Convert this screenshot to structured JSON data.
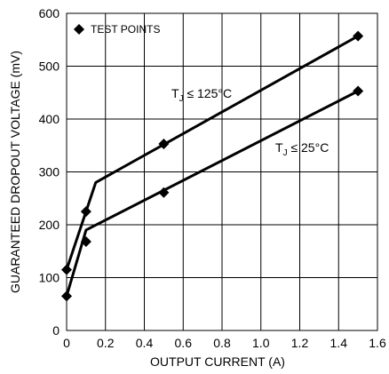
{
  "chart_data": {
    "type": "line",
    "title": "",
    "xlabel": "OUTPUT CURRENT (A)",
    "ylabel": "GUARANTEED DROPOUT VOLTAGE (mV)",
    "xlim": [
      0,
      1.6
    ],
    "ylim": [
      0,
      600
    ],
    "xticks": [
      0,
      0.2,
      0.4,
      0.6,
      0.8,
      1.0,
      1.2,
      1.4,
      1.6
    ],
    "xtick_labels": [
      "0",
      "0.2",
      "0.4",
      "0.6",
      "0.8",
      "1.0",
      "1.2",
      "1.4",
      "1.6"
    ],
    "yticks": [
      0,
      100,
      200,
      300,
      400,
      500,
      600
    ],
    "ytick_labels": [
      "0",
      "100",
      "200",
      "300",
      "400",
      "500",
      "600"
    ],
    "grid": true,
    "legend": {
      "label": "TEST POINTS",
      "marker": "diamond",
      "position": "top-left"
    },
    "series": [
      {
        "label_main": "T",
        "label_sub": "J",
        "label_rest": " ≤ 125°C",
        "line_x": [
          0,
          0.15,
          1.5
        ],
        "line_y": [
          115,
          280,
          557
        ],
        "points_x": [
          0,
          0.1,
          0.5,
          1.5
        ],
        "points_y": [
          115,
          225,
          353,
          557
        ]
      },
      {
        "label_main": "T",
        "label_sub": "J",
        "label_rest": " ≤ 25°C",
        "line_x": [
          0,
          0.1,
          1.5
        ],
        "line_y": [
          65,
          190,
          453
        ],
        "points_x": [
          0,
          0.1,
          0.5,
          1.5
        ],
        "points_y": [
          65,
          168,
          261,
          453
        ]
      }
    ]
  }
}
